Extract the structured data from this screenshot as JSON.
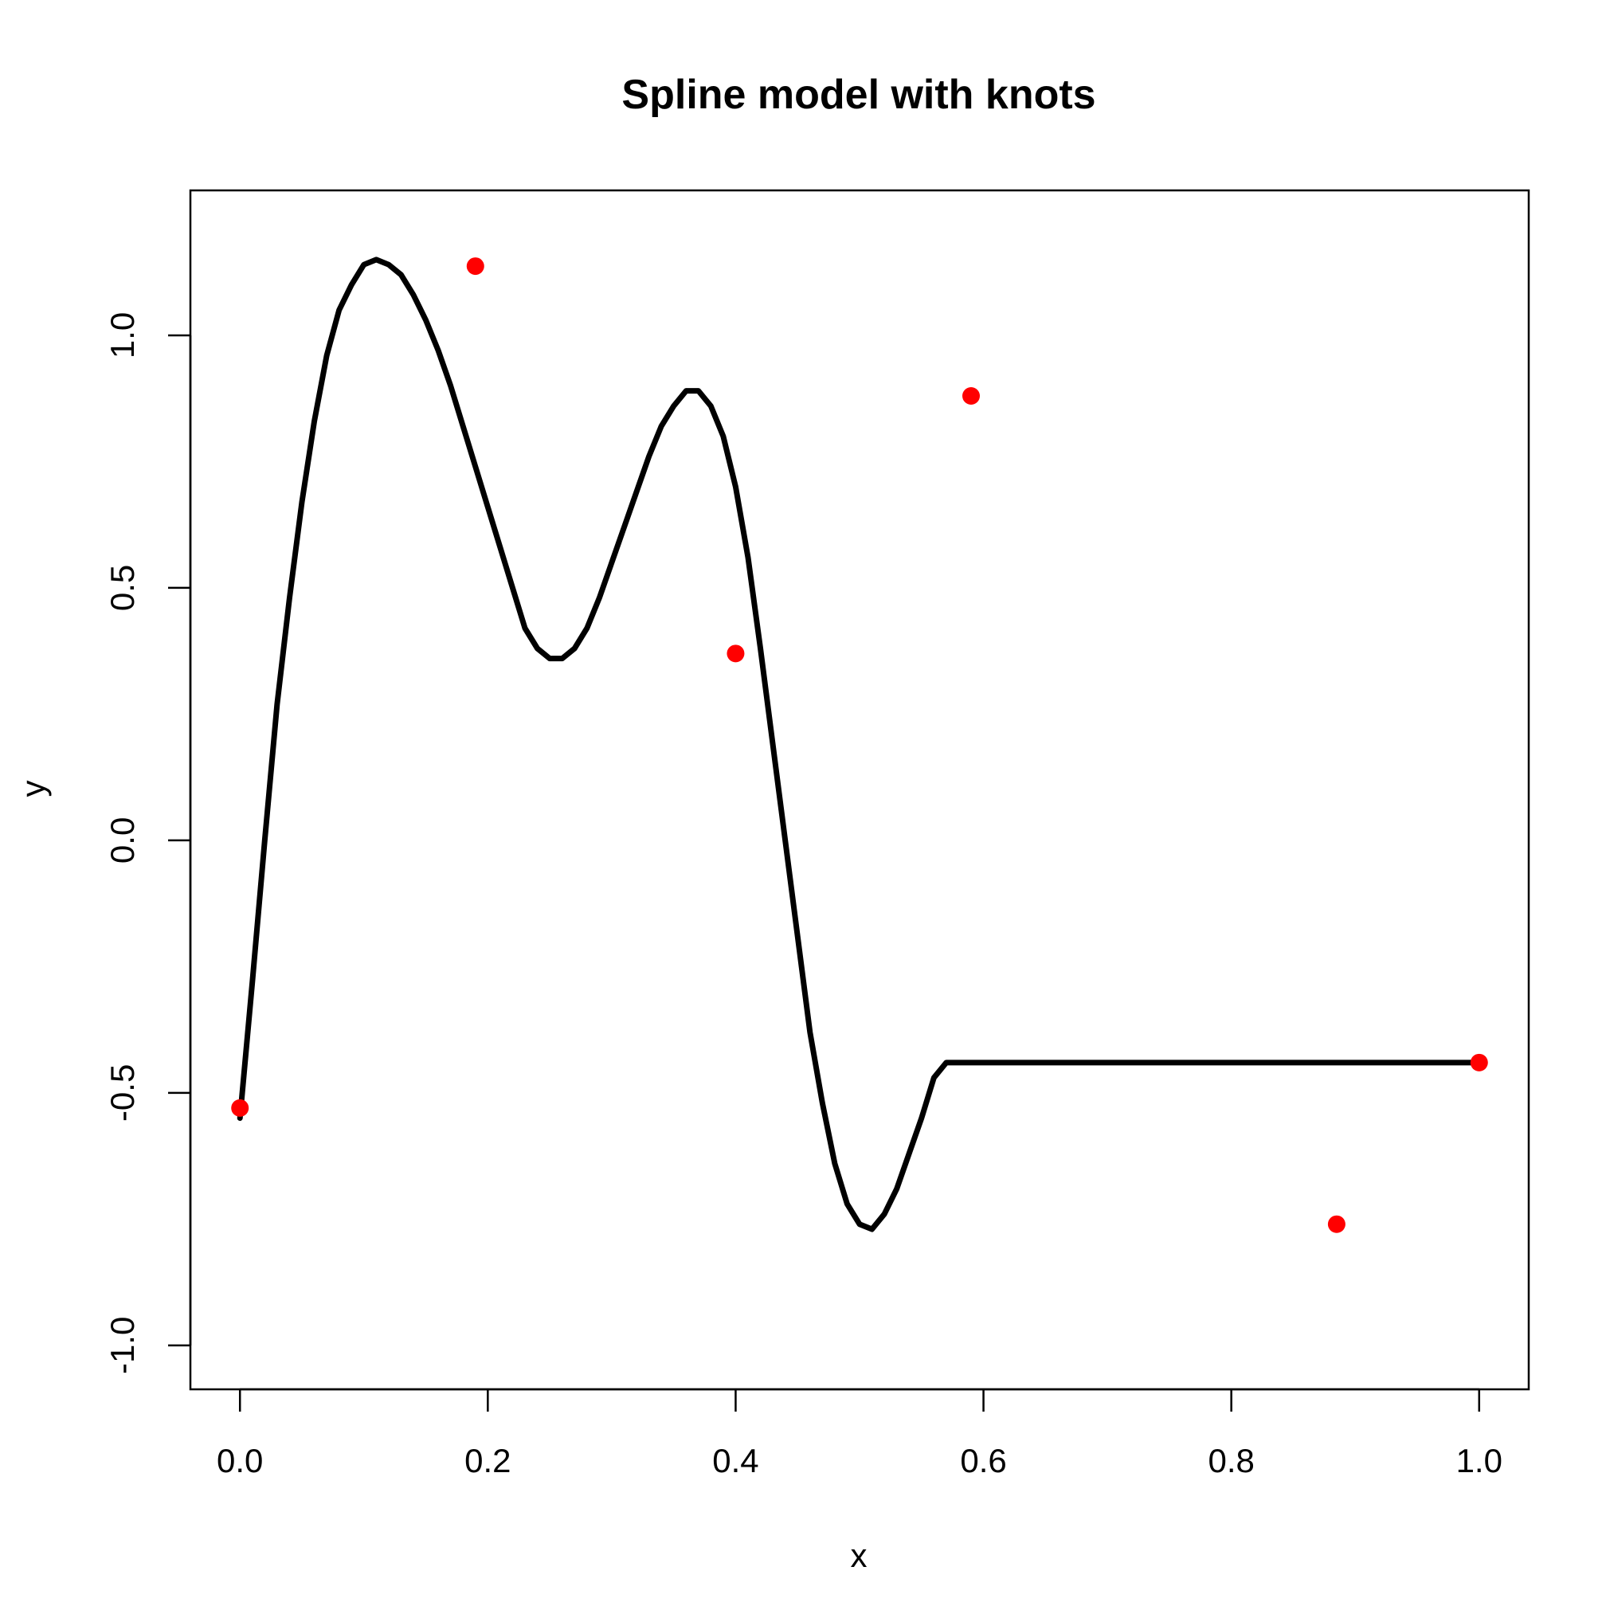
{
  "chart_data": {
    "type": "line",
    "title": "Spline model with knots",
    "xlabel": "x",
    "ylabel": "y",
    "xlim": [
      -0.04,
      1.04
    ],
    "ylim": [
      -1.087,
      1.287
    ],
    "x_ticks": [
      0.0,
      0.2,
      0.4,
      0.6,
      0.8,
      1.0
    ],
    "x_tick_labels": [
      "0.0",
      "0.2",
      "0.4",
      "0.6",
      "0.8",
      "1.0"
    ],
    "y_ticks": [
      -1.0,
      -0.5,
      0.0,
      0.5,
      1.0
    ],
    "y_tick_labels": [
      "-1.0",
      "-0.5",
      "0.0",
      "0.5",
      "1.0"
    ],
    "grid": false,
    "series": [
      {
        "style": "line",
        "color": "#000000",
        "x": [
          0.0,
          0.01,
          0.02,
          0.03,
          0.04,
          0.05,
          0.06,
          0.07,
          0.08,
          0.09,
          0.1,
          0.11,
          0.12,
          0.13,
          0.14,
          0.15,
          0.16,
          0.17,
          0.18,
          0.19,
          0.2,
          0.21,
          0.22,
          0.23,
          0.24,
          0.25,
          0.26,
          0.27,
          0.28,
          0.29,
          0.3,
          0.31,
          0.32,
          0.33,
          0.34,
          0.35,
          0.36,
          0.37,
          0.38,
          0.39,
          0.4,
          0.41,
          0.42,
          0.43,
          0.44,
          0.45,
          0.46,
          0.47,
          0.48,
          0.49,
          0.5,
          0.51,
          0.52,
          0.53,
          0.54,
          0.55,
          0.56,
          0.57,
          0.58,
          0.59,
          0.6,
          0.61,
          0.62,
          0.63,
          0.64,
          0.65,
          0.66,
          0.67,
          0.68,
          0.69,
          0.7,
          0.71,
          0.72,
          0.73,
          0.74,
          0.75,
          0.76,
          0.77,
          0.78,
          0.79,
          0.8,
          0.81,
          0.82,
          0.83,
          0.84,
          0.85,
          0.86,
          0.87,
          0.88,
          0.89,
          0.9,
          0.91,
          0.92,
          0.93,
          0.94,
          0.95,
          0.96,
          0.97,
          0.98,
          0.99,
          1.0
        ],
        "y": [
          -0.55,
          -0.28,
          0.0,
          0.27,
          0.48,
          0.67,
          0.83,
          0.96,
          1.05,
          1.1,
          1.14,
          1.15,
          1.14,
          1.12,
          1.08,
          1.03,
          0.97,
          0.9,
          0.82,
          0.74,
          0.66,
          0.58,
          0.5,
          0.42,
          0.38,
          0.36,
          0.36,
          0.38,
          0.42,
          0.48,
          0.55,
          0.62,
          0.69,
          0.76,
          0.82,
          0.86,
          0.89,
          0.89,
          0.86,
          0.8,
          0.7,
          0.56,
          0.38,
          0.19,
          0.0,
          -0.19,
          -0.38,
          -0.52,
          -0.64,
          -0.72,
          -0.76,
          -0.77,
          -0.74,
          -0.69,
          -0.62,
          -0.55,
          -0.47,
          -0.44,
          -0.44,
          -0.44,
          -0.44,
          -0.44,
          -0.44,
          -0.44,
          -0.44,
          -0.44,
          -0.44,
          -0.44,
          -0.44,
          -0.44,
          -0.44,
          -0.44,
          -0.44,
          -0.44,
          -0.44,
          -0.44,
          -0.44,
          -0.44,
          -0.44,
          -0.44,
          -0.44,
          -0.44,
          -0.44,
          -0.44,
          -0.44,
          -0.44,
          -0.44,
          -0.44,
          -0.44,
          -0.44,
          -0.44,
          -0.44,
          -0.44,
          -0.44,
          -0.44,
          -0.44,
          -0.44,
          -0.44,
          -0.44,
          -0.44,
          -0.44
        ]
      },
      {
        "style": "points",
        "color": "#ff0000",
        "x": [
          0.0,
          0.19,
          0.4,
          0.59,
          0.885,
          1.0
        ],
        "y": [
          -0.53,
          1.137,
          0.37,
          0.88,
          -0.76,
          -0.44
        ]
      }
    ]
  }
}
